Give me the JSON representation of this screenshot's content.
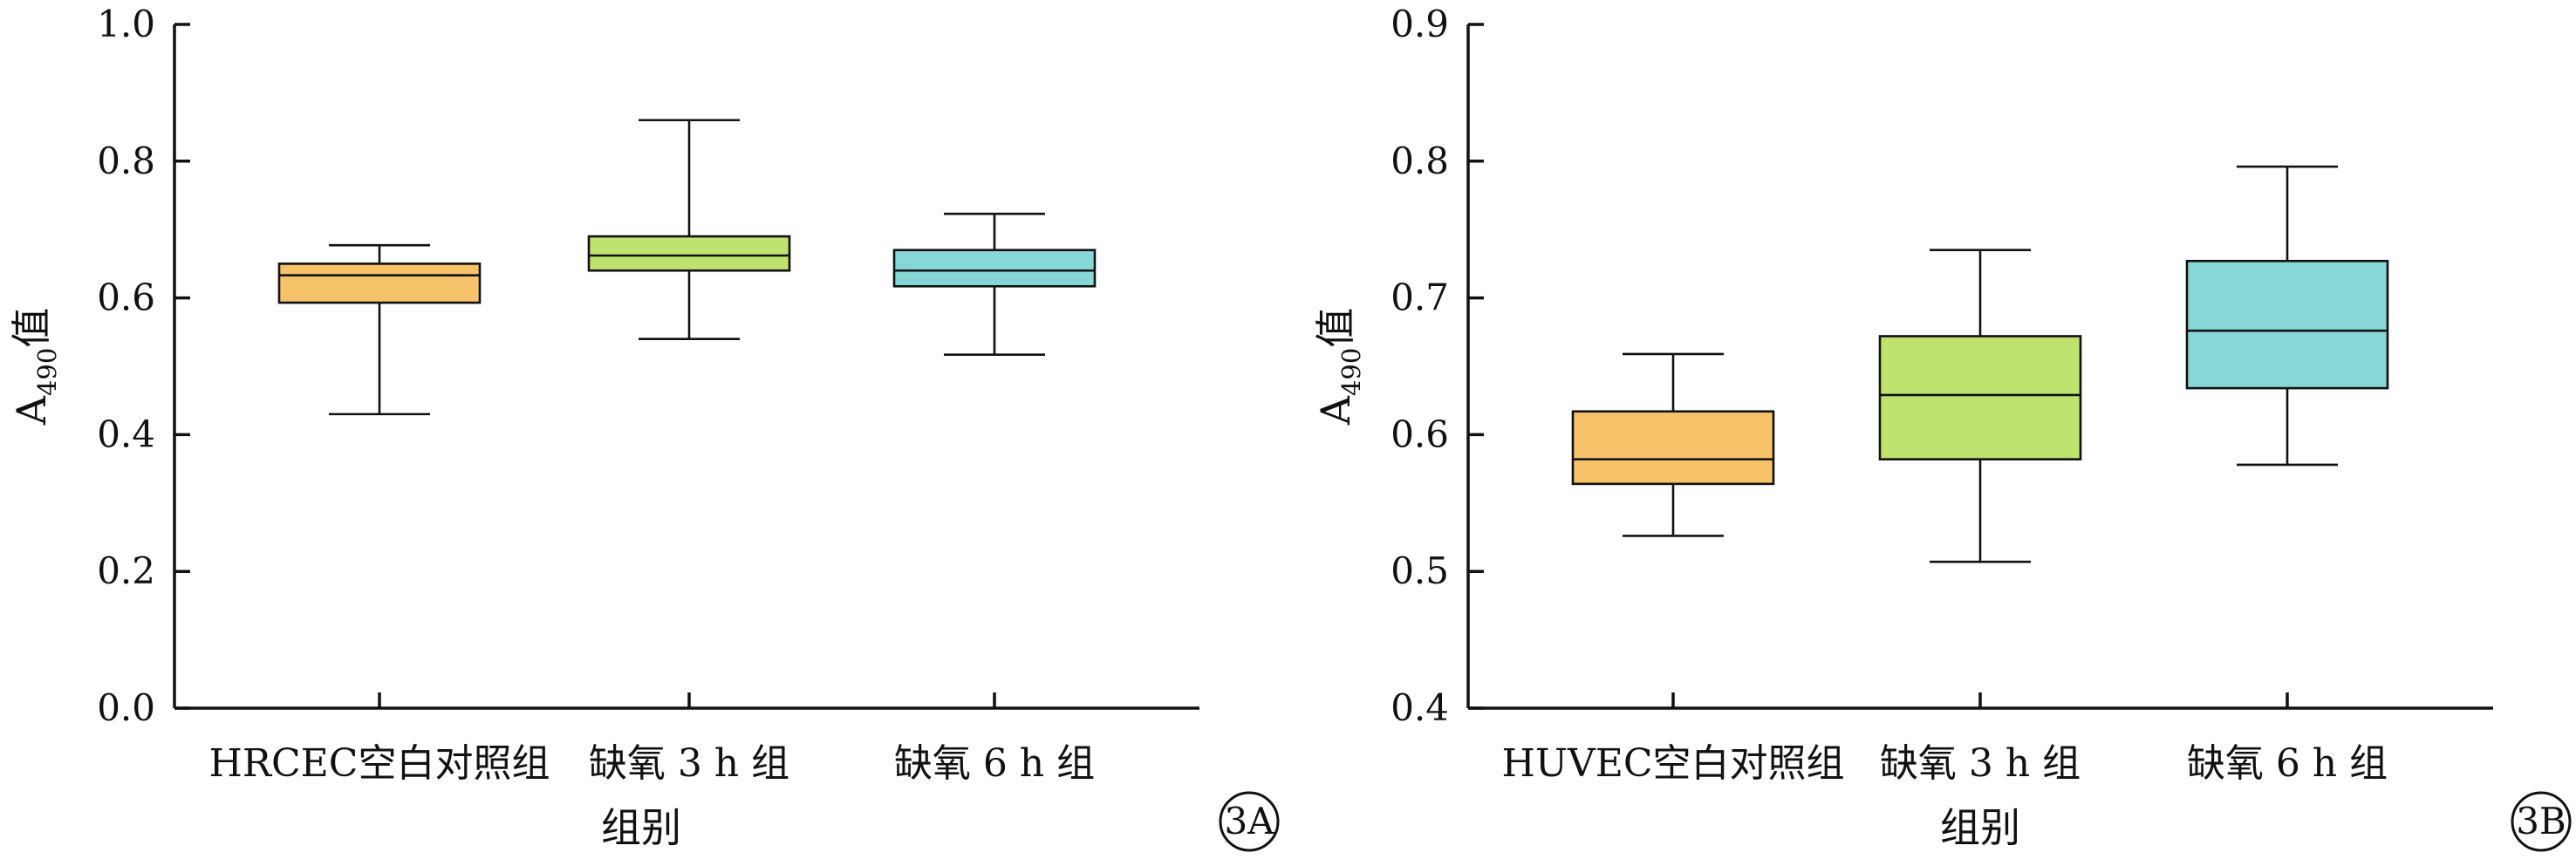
{
  "chart_data": [
    {
      "type": "box",
      "panel_label": "3A",
      "xlabel": "组别",
      "ylabel": {
        "main": "A",
        "sub": "490",
        "suffix": "值"
      },
      "ylim": [
        0.0,
        1.0
      ],
      "yticks": [
        "0.0",
        "0.2",
        "0.4",
        "0.6",
        "0.8",
        "1.0"
      ],
      "grid": false,
      "legend": "none",
      "categories": [
        "HRCEC空白对照组",
        "缺氧 3 h 组",
        "缺氧 6 h 组"
      ],
      "series": [
        {
          "category": "HRCEC空白对照组",
          "min": 0.43,
          "q1": 0.593,
          "median": 0.633,
          "q3": 0.65,
          "max": 0.677,
          "color": "#F6C26A"
        },
        {
          "category": "缺氧 3 h 组",
          "min": 0.54,
          "q1": 0.64,
          "median": 0.662,
          "q3": 0.69,
          "max": 0.86,
          "color": "#BFE26F"
        },
        {
          "category": "缺氧 6 h 组",
          "min": 0.517,
          "q1": 0.617,
          "median": 0.64,
          "q3": 0.67,
          "max": 0.723,
          "color": "#86D7D6"
        }
      ]
    },
    {
      "type": "box",
      "panel_label": "3B",
      "xlabel": "组别",
      "ylabel": {
        "main": "A",
        "sub": "490",
        "suffix": "值"
      },
      "ylim": [
        0.4,
        0.9
      ],
      "yticks": [
        "0.4",
        "0.5",
        "0.6",
        "0.7",
        "0.8",
        "0.9"
      ],
      "grid": false,
      "legend": "none",
      "categories": [
        "HUVEC空白对照组",
        "缺氧 3 h 组",
        "缺氧 6 h 组"
      ],
      "series": [
        {
          "category": "HUVEC空白对照组",
          "min": 0.526,
          "q1": 0.564,
          "median": 0.582,
          "q3": 0.617,
          "max": 0.659,
          "color": "#F6C26A"
        },
        {
          "category": "缺氧 3 h 组",
          "min": 0.507,
          "q1": 0.582,
          "median": 0.629,
          "q3": 0.672,
          "max": 0.735,
          "color": "#BFE26F"
        },
        {
          "category": "缺氧 6 h 组",
          "min": 0.578,
          "q1": 0.634,
          "median": 0.676,
          "q3": 0.727,
          "max": 0.796,
          "color": "#86D7D6"
        }
      ]
    }
  ]
}
